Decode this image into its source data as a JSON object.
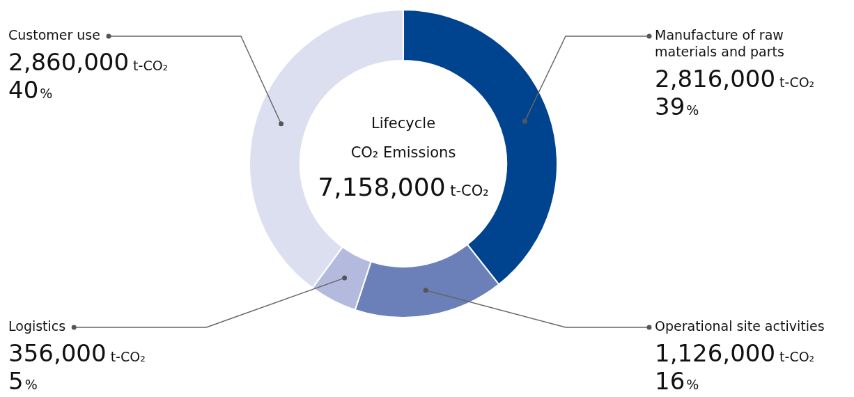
{
  "chart_data": {
    "type": "donut",
    "title": "Lifecycle CO₂ Emissions",
    "subtitle": "7,158,000 t-CO₂",
    "categories": [
      "Manufacture of raw materials and parts",
      "Operational site activities",
      "Logistics",
      "Customer use"
    ],
    "values": [
      2816000,
      1126000,
      356000,
      2860000
    ],
    "colors": [
      "#00448f",
      "#6b7fb8",
      "#b3bade",
      "#dcdff0"
    ],
    "value_labels": [
      "2,816,000 t-CO₂",
      "1,126,000 t-CO₂",
      "356,000 t-CO₂",
      "2,860,000 t-CO₂"
    ],
    "annotations": [
      "39%",
      "16%",
      "5%",
      "40%"
    ],
    "legend": false
  }
}
